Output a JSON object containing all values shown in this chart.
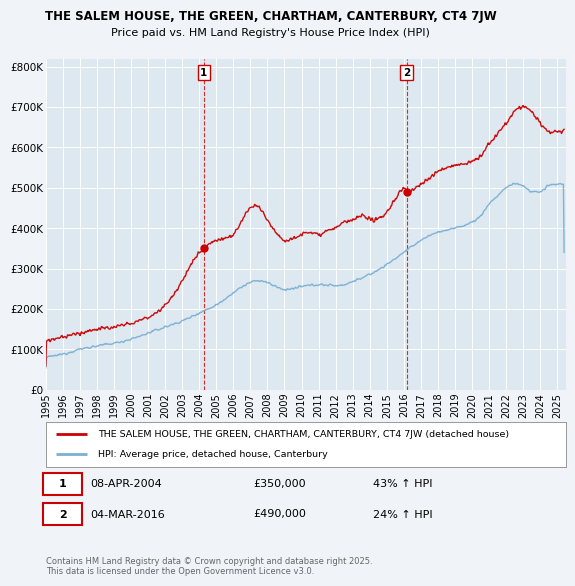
{
  "title_line1": "THE SALEM HOUSE, THE GREEN, CHARTHAM, CANTERBURY, CT4 7JW",
  "title_line2": "Price paid vs. HM Land Registry's House Price Index (HPI)",
  "bg_color": "#f0f4f8",
  "plot_bg_color": "#dde8f0",
  "yticks": [
    0,
    100000,
    200000,
    300000,
    400000,
    500000,
    600000,
    700000,
    800000
  ],
  "ytick_labels": [
    "£0",
    "£100K",
    "£200K",
    "£300K",
    "£400K",
    "£500K",
    "£600K",
    "£700K",
    "£800K"
  ],
  "xmin": 1995.0,
  "xmax": 2025.5,
  "ymin": 0,
  "ymax": 820000,
  "sale1_x": 2004.27,
  "sale1_y": 350000,
  "sale2_x": 2016.17,
  "sale2_y": 490000,
  "sale1_date": "08-APR-2004",
  "sale1_price": "£350,000",
  "sale1_hpi": "43% ↑ HPI",
  "sale2_date": "04-MAR-2016",
  "sale2_price": "£490,000",
  "sale2_hpi": "24% ↑ HPI",
  "red_color": "#cc0000",
  "blue_color": "#7ab0d4",
  "legend_label_red": "THE SALEM HOUSE, THE GREEN, CHARTHAM, CANTERBURY, CT4 7JW (detached house)",
  "legend_label_blue": "HPI: Average price, detached house, Canterbury",
  "footer": "Contains HM Land Registry data © Crown copyright and database right 2025.\nThis data is licensed under the Open Government Licence v3.0.",
  "xtick_years": [
    1995,
    1996,
    1997,
    1998,
    1999,
    2000,
    2001,
    2002,
    2003,
    2004,
    2005,
    2006,
    2007,
    2008,
    2009,
    2010,
    2011,
    2012,
    2013,
    2014,
    2015,
    2016,
    2017,
    2018,
    2019,
    2020,
    2021,
    2022,
    2023,
    2024,
    2025
  ]
}
